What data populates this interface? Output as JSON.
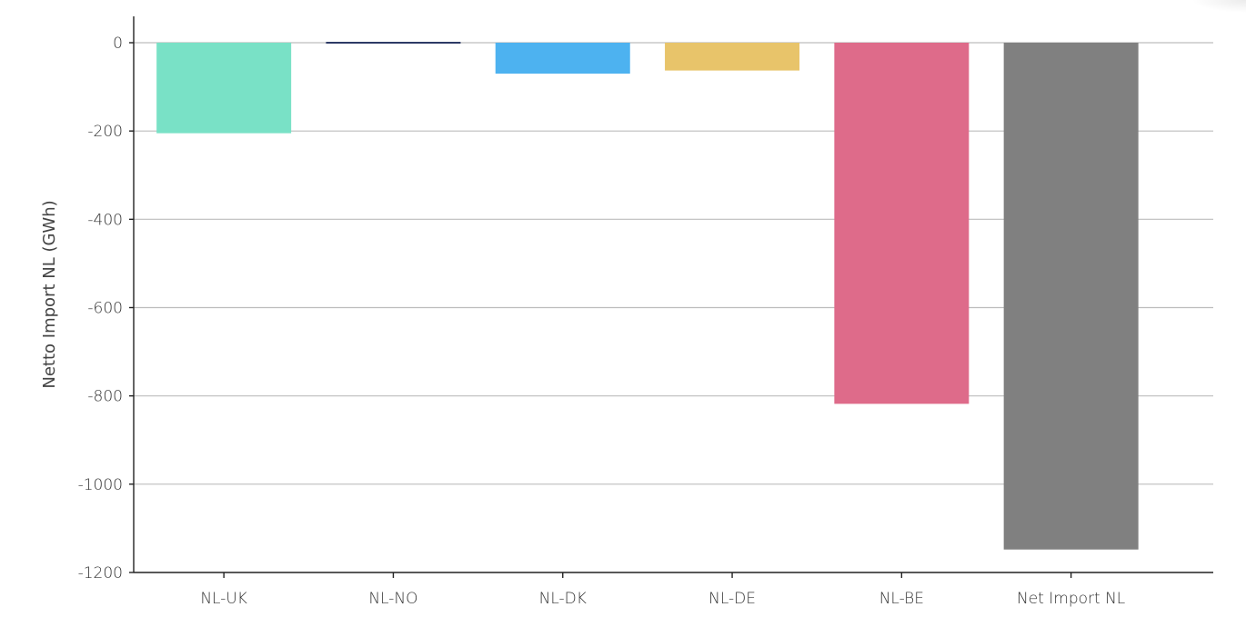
{
  "chart_data": {
    "type": "bar",
    "categories": [
      "NL-UK",
      "NL-NO",
      "NL-DK",
      "NL-DE",
      "NL-BE",
      "Net Import NL"
    ],
    "values": [
      -205,
      3,
      -70,
      -63,
      -818,
      -1148
    ],
    "colors": [
      "#79e1c6",
      "#2d3a66",
      "#4db2f0",
      "#e8c46a",
      "#de6b8a",
      "#808080"
    ],
    "ylabel": "Netto Import NL (GWh)",
    "xlabel": "",
    "title": "",
    "ylim": [
      -1200,
      0
    ],
    "yticks": [
      0,
      -200,
      -400,
      -600,
      -800,
      -1000,
      -1200
    ],
    "ytick_labels": [
      "0",
      "-200",
      "-400",
      "-600",
      "-800",
      "-1000",
      "-1200"
    ],
    "grid": "horizontal",
    "legend": "none"
  }
}
